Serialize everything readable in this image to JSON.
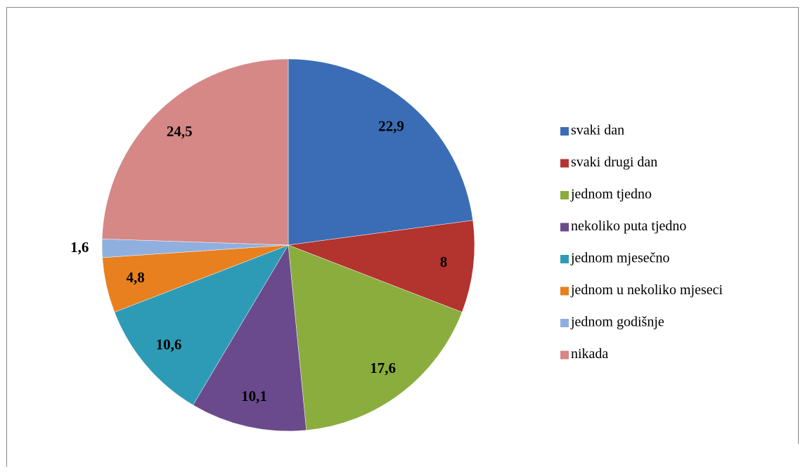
{
  "chart_data": {
    "type": "pie",
    "categories": [
      "svaki dan",
      "svaki drugi dan",
      "jednom tjedno",
      "nekoliko puta tjedno",
      "jednom mjesečno",
      "jednom u nekoliko mjeseci",
      "jednom godišnje",
      "nikada"
    ],
    "values": [
      22.9,
      8,
      17.6,
      10.1,
      10.6,
      4.8,
      1.6,
      24.5
    ],
    "value_labels": [
      "22,9",
      "8",
      "17,6",
      "10,1",
      "10,6",
      "4,8",
      "1,6",
      "24,5"
    ],
    "colors": [
      "#3a6db5",
      "#b3332f",
      "#8aad3d",
      "#6a4a8c",
      "#2e9bb6",
      "#e8801f",
      "#8fb0df",
      "#d68886"
    ],
    "legend": "right"
  }
}
